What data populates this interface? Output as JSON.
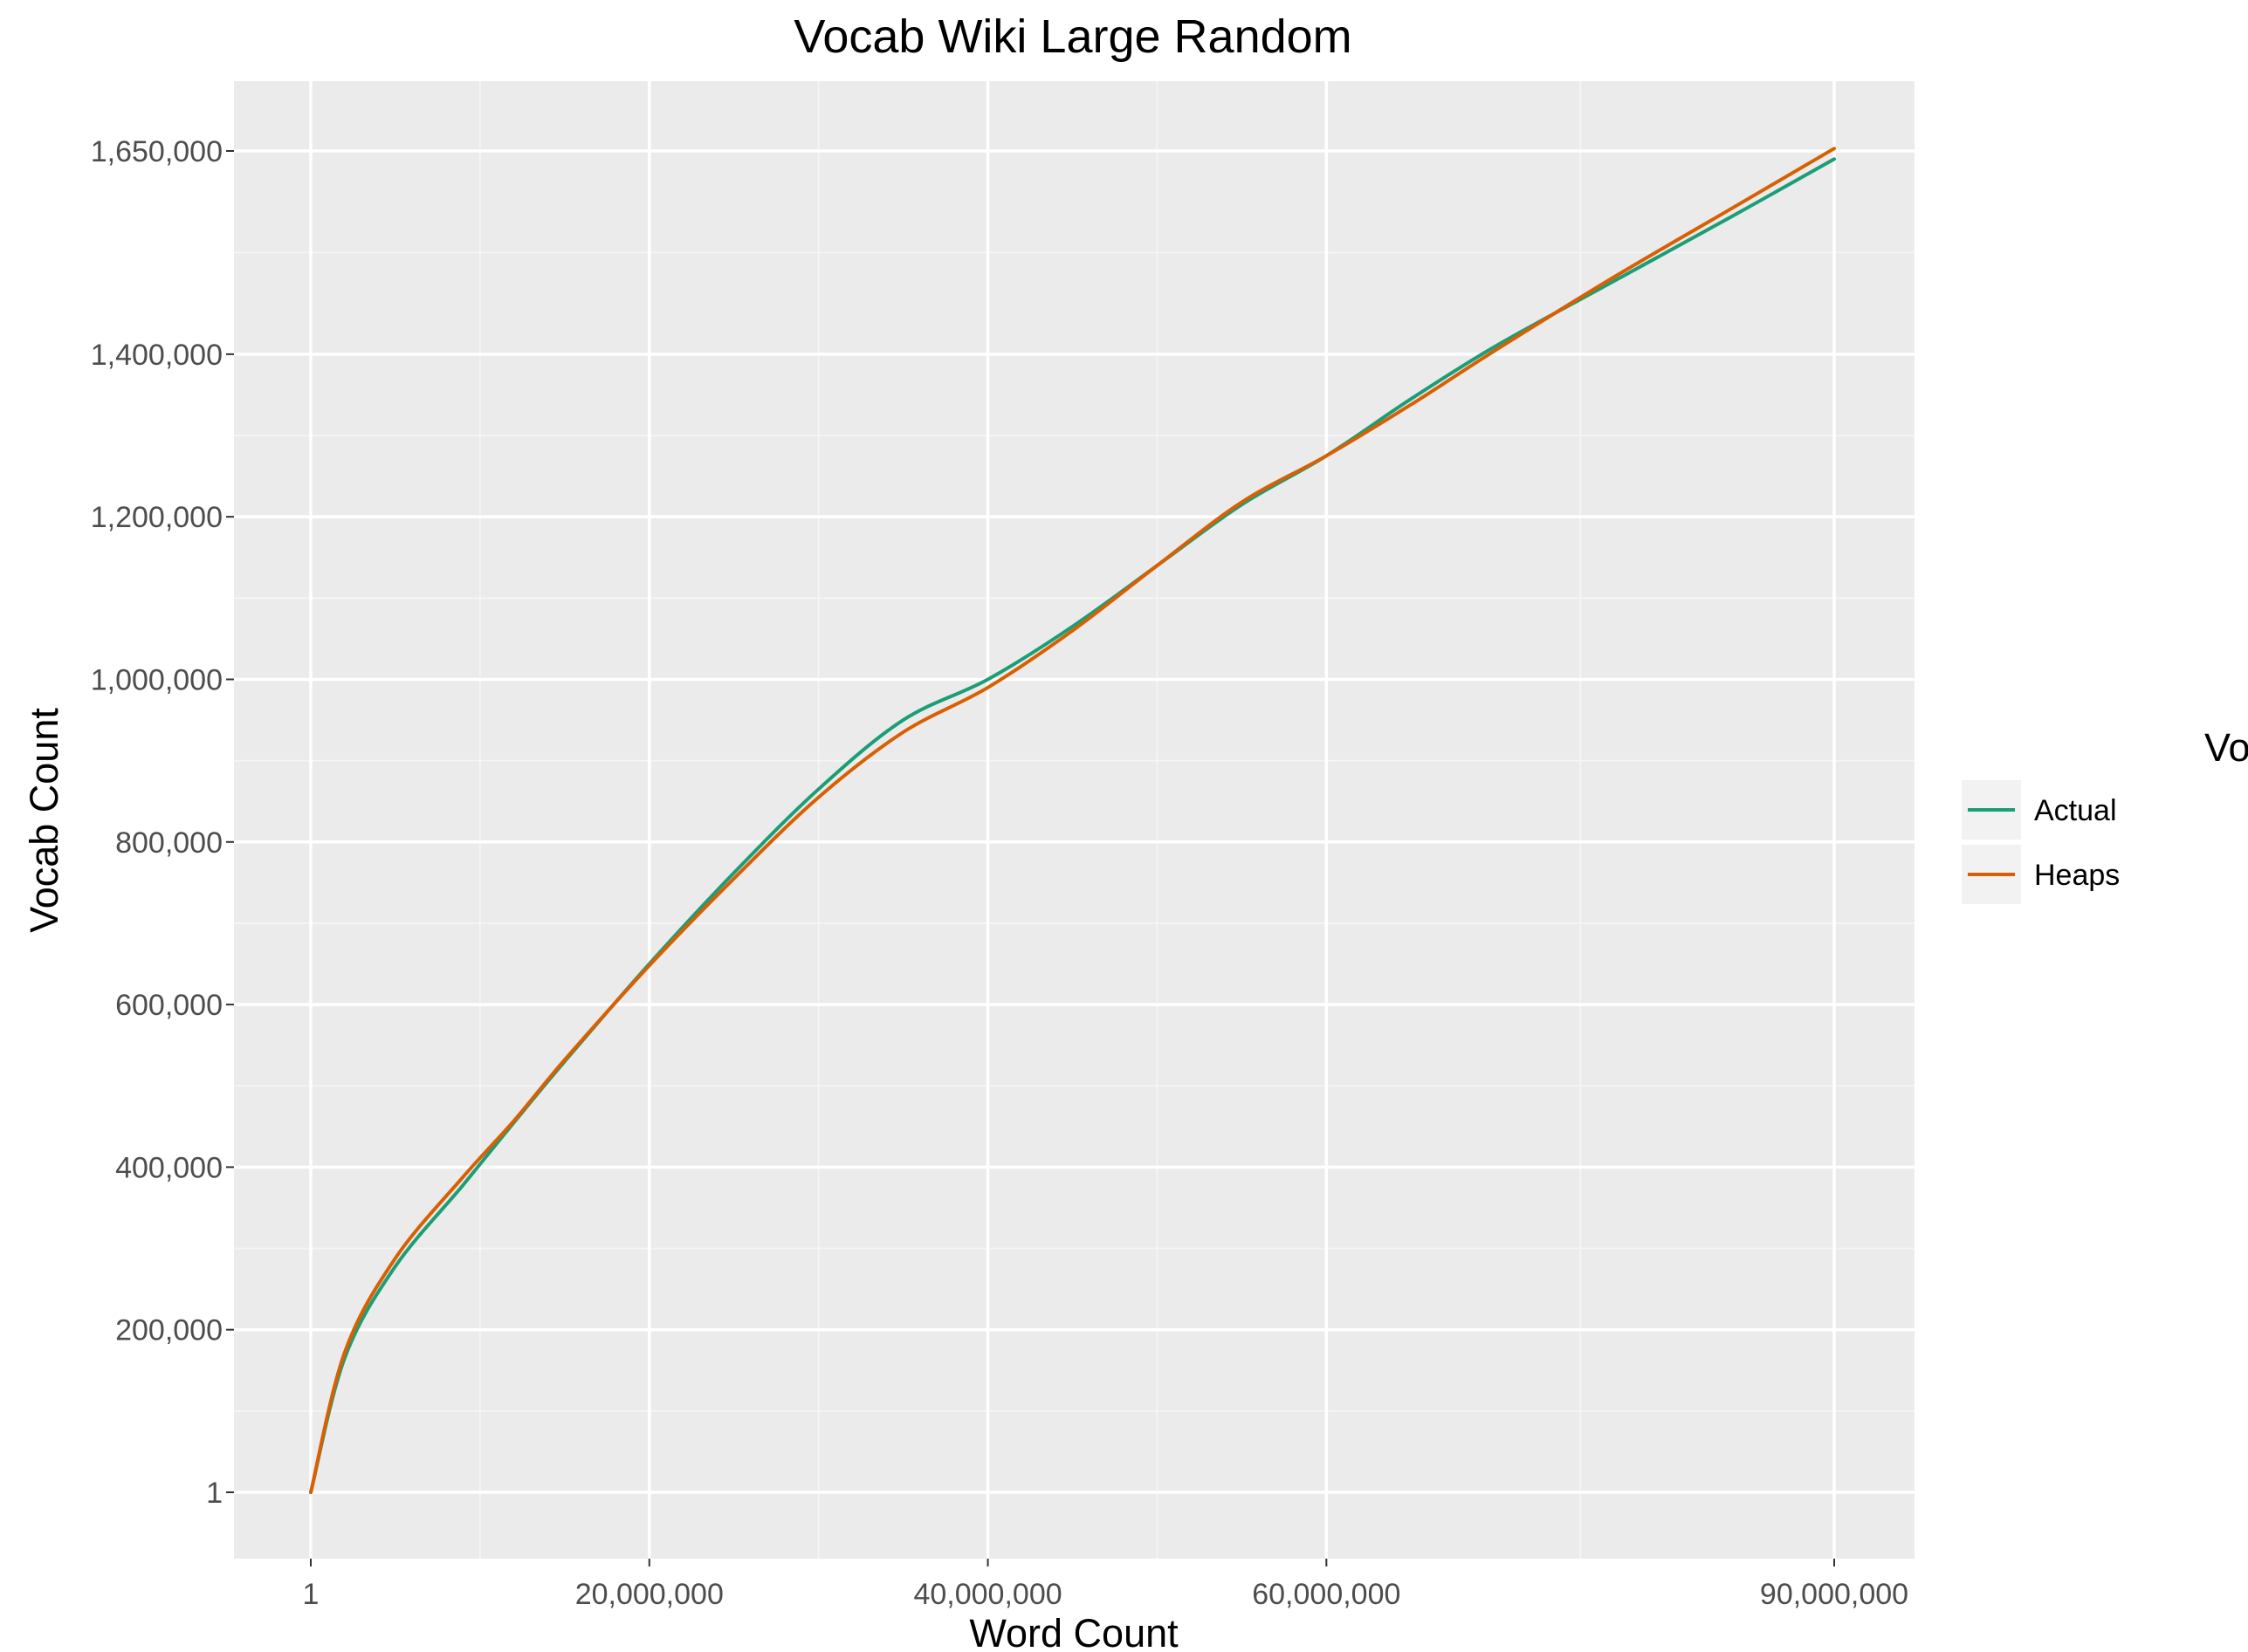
{
  "chart_data": {
    "type": "line",
    "title": "Vocab Wiki Large Random",
    "xlabel": "Word Count",
    "ylabel": "Vocab Count",
    "x_tick_labels": [
      "1",
      "20,000,000",
      "40,000,000",
      "60,000,000",
      "90,000,000"
    ],
    "y_tick_labels": [
      "1",
      "200,000",
      "400,000",
      "600,000",
      "800,000",
      "1,000,000",
      "1,200,000",
      "1,400,000",
      "1,650,000"
    ],
    "grid": true,
    "legend": {
      "title": "Vocab Growth",
      "position": "right",
      "entries": [
        "Actual",
        "Heaps"
      ]
    },
    "series": [
      {
        "name": "Actual",
        "color": "#1b9e77",
        "x": [
          1,
          2000000,
          5000000,
          9000000,
          12000000,
          15000000,
          20000000,
          25000000,
          30000000,
          35000000,
          40000000,
          45000000,
          50000000,
          55000000,
          60000000,
          65000000,
          70000000,
          77000000,
          84000000,
          90000000
        ],
        "y": [
          1,
          165000,
          278000,
          378000,
          455000,
          530000,
          650000,
          762000,
          865000,
          950000,
          1000000,
          1065000,
          1140000,
          1215000,
          1275000,
          1345000,
          1410000,
          1490000,
          1570000,
          1640000
        ]
      },
      {
        "name": "Heaps",
        "color": "#d95f02",
        "x": [
          1,
          2000000,
          5000000,
          9000000,
          12000000,
          15000000,
          20000000,
          25000000,
          30000000,
          35000000,
          40000000,
          45000000,
          50000000,
          55000000,
          60000000,
          65000000,
          70000000,
          77000000,
          84000000,
          90000000
        ],
        "y": [
          1,
          172000,
          288000,
          388000,
          457000,
          532000,
          648000,
          755000,
          855000,
          935000,
          990000,
          1060000,
          1140000,
          1218000,
          1275000,
          1338000,
          1405000,
          1495000,
          1580000,
          1653000
        ]
      }
    ]
  }
}
